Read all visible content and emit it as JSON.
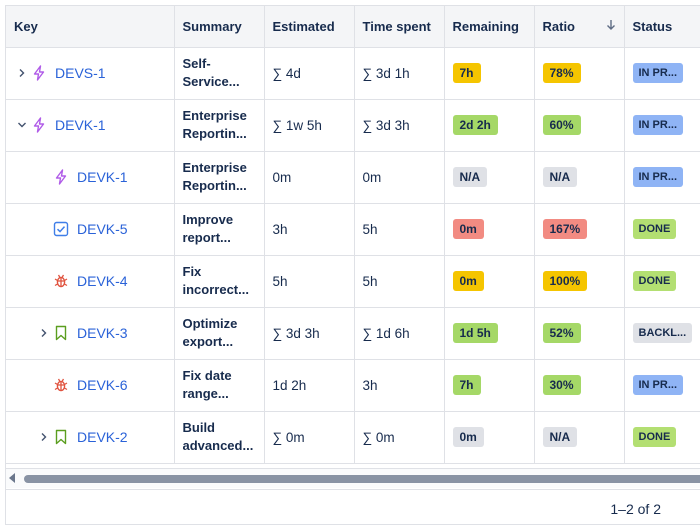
{
  "columns": {
    "key": "Key",
    "summary": "Summary",
    "estimated": "Estimated",
    "time_spent": "Time spent",
    "remaining": "Remaining",
    "ratio": "Ratio",
    "status": "Status",
    "ratio_sort_icon": "arrow-down-icon"
  },
  "colors": {
    "yellow": "#f5c500",
    "green": "#a5d867",
    "red": "#f28b82",
    "gray": "#dfe1e6",
    "blue": "#8fb4f5",
    "done_green": "#b3df72"
  },
  "rows": [
    {
      "expand": "right",
      "indent": 0,
      "type": "epic",
      "key": "DEVS-1",
      "summary": "Self-Service...",
      "estimated": "∑ 4d",
      "spent": "∑ 3d 1h",
      "remaining": "7h",
      "remaining_color": "#f5c500",
      "ratio": "78%",
      "ratio_color": "#f5c500",
      "status": "IN PR...",
      "status_color": "#8fb4f5"
    },
    {
      "expand": "down",
      "indent": 0,
      "type": "epic",
      "key": "DEVK-1",
      "summary": "Enterprise Reportin...",
      "estimated": "∑ 1w 5h",
      "spent": "∑ 3d 3h",
      "remaining": "2d 2h",
      "remaining_color": "#a5d867",
      "ratio": "60%",
      "ratio_color": "#a5d867",
      "status": "IN PR...",
      "status_color": "#8fb4f5"
    },
    {
      "expand": "",
      "indent": 1,
      "type": "epic",
      "key": "DEVK-1",
      "summary": "Enterprise Reportin...",
      "estimated": "0m",
      "spent": "0m",
      "remaining": "N/A",
      "remaining_color": "#dfe1e6",
      "ratio": "N/A",
      "ratio_color": "#dfe1e6",
      "status": "IN PR...",
      "status_color": "#8fb4f5"
    },
    {
      "expand": "",
      "indent": 1,
      "type": "task",
      "key": "DEVK-5",
      "summary": "Improve report...",
      "estimated": "3h",
      "spent": "5h",
      "remaining": "0m",
      "remaining_color": "#f28b82",
      "ratio": "167%",
      "ratio_color": "#f28b82",
      "status": "DONE",
      "status_color": "#b3df72"
    },
    {
      "expand": "",
      "indent": 1,
      "type": "bug",
      "key": "DEVK-4",
      "summary": "Fix incorrect...",
      "estimated": "5h",
      "spent": "5h",
      "remaining": "0m",
      "remaining_color": "#f5c500",
      "ratio": "100%",
      "ratio_color": "#f5c500",
      "status": "DONE",
      "status_color": "#b3df72"
    },
    {
      "expand": "right",
      "indent": 1,
      "type": "story",
      "key": "DEVK-3",
      "summary": "Optimize export...",
      "estimated": "∑ 3d 3h",
      "spent": "∑ 1d 6h",
      "remaining": "1d 5h",
      "remaining_color": "#a5d867",
      "ratio": "52%",
      "ratio_color": "#a5d867",
      "status": "BACKL...",
      "status_color": "#dfe1e6"
    },
    {
      "expand": "",
      "indent": 1,
      "type": "bug",
      "key": "DEVK-6",
      "summary": "Fix date range...",
      "estimated": "1d 2h",
      "spent": "3h",
      "remaining": "7h",
      "remaining_color": "#a5d867",
      "ratio": "30%",
      "ratio_color": "#a5d867",
      "status": "IN PR...",
      "status_color": "#8fb4f5"
    },
    {
      "expand": "right",
      "indent": 1,
      "type": "story",
      "key": "DEVK-2",
      "summary": "Build advanced...",
      "estimated": "∑ 0m",
      "spent": "∑ 0m",
      "remaining": "0m",
      "remaining_color": "#dfe1e6",
      "ratio": "N/A",
      "ratio_color": "#dfe1e6",
      "status": "DONE",
      "status_color": "#b3df72"
    }
  ],
  "pagination": {
    "label": "1–2 of 2"
  }
}
